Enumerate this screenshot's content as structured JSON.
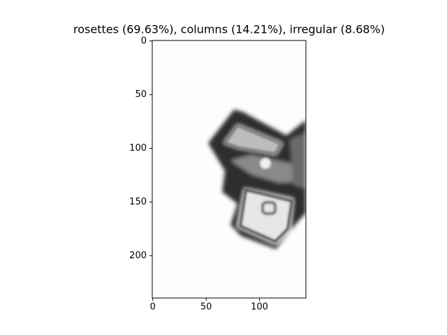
{
  "chart_data": {
    "type": "image",
    "title": "rosettes (69.63%), columns (14.21%), irregular (8.68%)",
    "xlim": [
      -0.5,
      143.5
    ],
    "ylim": [
      239.5,
      -0.5
    ],
    "xticks": [
      0,
      50,
      100
    ],
    "yticks": [
      0,
      50,
      100,
      150,
      200
    ]
  }
}
